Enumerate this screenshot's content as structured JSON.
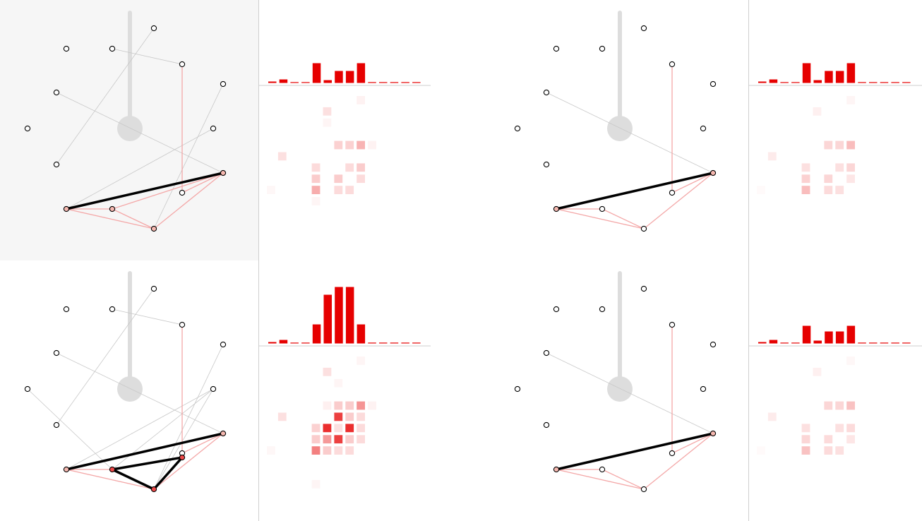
{
  "colors": {
    "accent": "#e60000",
    "pink_edge": "#f4a8a8",
    "gray_edge": "#c8c8c8",
    "panel_bg": "#f6f6f6",
    "thermo": "#dddddd",
    "divider": "#cfcfcf",
    "highlight_edge": "#000000",
    "node_selected_light": "#f6b8b0",
    "node_selected_strong": "#ee4a4a",
    "node_default": "#ffffff"
  },
  "icons": {
    "thermometer": "thermometer-icon"
  },
  "chart_data": [
    {
      "type": "bar",
      "name_hint": "top-left",
      "values": [
        2,
        5,
        1,
        1,
        28,
        4,
        17,
        17,
        28,
        1,
        1,
        1,
        1,
        1
      ],
      "ylim": [
        0,
        90
      ],
      "matrix_size": 14,
      "matrix": [
        {
          "r": 0,
          "c": 8,
          "v": 0.05
        },
        {
          "r": 1,
          "c": 5,
          "v": 0.12
        },
        {
          "r": 2,
          "c": 5,
          "v": 0.04
        },
        {
          "r": 4,
          "c": 6,
          "v": 0.18
        },
        {
          "r": 4,
          "c": 7,
          "v": 0.18
        },
        {
          "r": 4,
          "c": 8,
          "v": 0.3
        },
        {
          "r": 4,
          "c": 9,
          "v": 0.05
        },
        {
          "r": 5,
          "c": 1,
          "v": 0.12
        },
        {
          "r": 6,
          "c": 4,
          "v": 0.14
        },
        {
          "r": 6,
          "c": 7,
          "v": 0.14
        },
        {
          "r": 6,
          "c": 8,
          "v": 0.2
        },
        {
          "r": 7,
          "c": 4,
          "v": 0.2
        },
        {
          "r": 7,
          "c": 6,
          "v": 0.2
        },
        {
          "r": 7,
          "c": 8,
          "v": 0.14
        },
        {
          "r": 8,
          "c": 0,
          "v": 0.03
        },
        {
          "r": 8,
          "c": 4,
          "v": 0.32
        },
        {
          "r": 8,
          "c": 6,
          "v": 0.14
        },
        {
          "r": 8,
          "c": 7,
          "v": 0.14
        },
        {
          "r": 9,
          "c": 4,
          "v": 0.04
        }
      ],
      "edges_gray": [
        [
          2,
          8
        ],
        [
          3,
          13
        ],
        [
          1,
          9
        ],
        [
          12,
          7
        ],
        [
          11,
          6
        ]
      ],
      "edges_pink": [
        [
          11,
          4
        ],
        [
          11,
          7
        ],
        [
          4,
          7
        ],
        [
          7,
          13
        ],
        [
          4,
          13
        ],
        [
          9,
          10
        ],
        [
          10,
          13
        ]
      ],
      "edges_black": [
        [
          11,
          13
        ]
      ],
      "triangle": [],
      "selected_nodes": [
        11,
        4,
        7,
        13
      ],
      "strong_nodes": []
    },
    {
      "type": "bar",
      "name_hint": "top-right",
      "values": [
        2,
        5,
        1,
        1,
        28,
        4,
        17,
        17,
        28,
        1,
        1,
        1,
        1,
        1
      ],
      "ylim": [
        0,
        90
      ],
      "matrix_size": 14,
      "matrix": [
        {
          "r": 0,
          "c": 8,
          "v": 0.04
        },
        {
          "r": 1,
          "c": 5,
          "v": 0.06
        },
        {
          "r": 4,
          "c": 6,
          "v": 0.16
        },
        {
          "r": 4,
          "c": 7,
          "v": 0.16
        },
        {
          "r": 4,
          "c": 8,
          "v": 0.26
        },
        {
          "r": 5,
          "c": 1,
          "v": 0.08
        },
        {
          "r": 6,
          "c": 4,
          "v": 0.12
        },
        {
          "r": 6,
          "c": 7,
          "v": 0.12
        },
        {
          "r": 6,
          "c": 8,
          "v": 0.16
        },
        {
          "r": 7,
          "c": 4,
          "v": 0.18
        },
        {
          "r": 7,
          "c": 6,
          "v": 0.16
        },
        {
          "r": 7,
          "c": 8,
          "v": 0.1
        },
        {
          "r": 8,
          "c": 0,
          "v": 0.02
        },
        {
          "r": 8,
          "c": 4,
          "v": 0.26
        },
        {
          "r": 8,
          "c": 6,
          "v": 0.14
        },
        {
          "r": 8,
          "c": 7,
          "v": 0.12
        }
      ],
      "edges_gray": [
        [
          3,
          13
        ]
      ],
      "edges_pink": [
        [
          11,
          4
        ],
        [
          11,
          7
        ],
        [
          4,
          7
        ],
        [
          7,
          13
        ],
        [
          9,
          10
        ],
        [
          10,
          13
        ]
      ],
      "edges_black": [
        [
          11,
          13
        ]
      ],
      "triangle": [],
      "selected_nodes": [
        11,
        13
      ],
      "strong_nodes": []
    },
    {
      "type": "bar",
      "name_hint": "bottom-left",
      "values": [
        2,
        5,
        1,
        1,
        27,
        69,
        80,
        80,
        27,
        1,
        1,
        1,
        1,
        1
      ],
      "ylim": [
        0,
        90
      ],
      "matrix_size": 14,
      "matrix": [
        {
          "r": 0,
          "c": 8,
          "v": 0.04
        },
        {
          "r": 1,
          "c": 5,
          "v": 0.12
        },
        {
          "r": 2,
          "c": 6,
          "v": 0.04
        },
        {
          "r": 4,
          "c": 5,
          "v": 0.06
        },
        {
          "r": 4,
          "c": 6,
          "v": 0.2
        },
        {
          "r": 4,
          "c": 7,
          "v": 0.2
        },
        {
          "r": 4,
          "c": 8,
          "v": 0.42
        },
        {
          "r": 4,
          "c": 9,
          "v": 0.05
        },
        {
          "r": 5,
          "c": 1,
          "v": 0.12
        },
        {
          "r": 5,
          "c": 6,
          "v": 0.75
        },
        {
          "r": 5,
          "c": 7,
          "v": 0.2
        },
        {
          "r": 5,
          "c": 8,
          "v": 0.14
        },
        {
          "r": 6,
          "c": 4,
          "v": 0.18
        },
        {
          "r": 6,
          "c": 5,
          "v": 0.82
        },
        {
          "r": 6,
          "c": 6,
          "v": 0.12
        },
        {
          "r": 6,
          "c": 7,
          "v": 0.82
        },
        {
          "r": 6,
          "c": 8,
          "v": 0.14
        },
        {
          "r": 7,
          "c": 4,
          "v": 0.2
        },
        {
          "r": 7,
          "c": 5,
          "v": 0.4
        },
        {
          "r": 7,
          "c": 6,
          "v": 0.75
        },
        {
          "r": 7,
          "c": 7,
          "v": 0.2
        },
        {
          "r": 7,
          "c": 8,
          "v": 0.14
        },
        {
          "r": 8,
          "c": 0,
          "v": 0.03
        },
        {
          "r": 8,
          "c": 4,
          "v": 0.5
        },
        {
          "r": 8,
          "c": 5,
          "v": 0.2
        },
        {
          "r": 8,
          "c": 6,
          "v": 0.14
        },
        {
          "r": 8,
          "c": 7,
          "v": 0.14
        },
        {
          "r": 11,
          "c": 4,
          "v": 0.04
        }
      ],
      "edges_gray": [
        [
          2,
          8
        ],
        [
          3,
          13
        ],
        [
          1,
          9
        ],
        [
          12,
          7
        ],
        [
          11,
          6
        ],
        [
          4,
          6
        ],
        [
          7,
          6
        ],
        [
          4,
          5
        ]
      ],
      "edges_pink": [
        [
          11,
          4
        ],
        [
          11,
          7
        ],
        [
          7,
          13
        ],
        [
          9,
          10
        ],
        [
          10,
          13
        ]
      ],
      "edges_black": [
        [
          11,
          13
        ]
      ],
      "triangle": [
        4,
        14,
        7
      ],
      "selected_nodes": [
        11,
        13
      ],
      "strong_nodes": [
        4,
        14,
        7
      ]
    },
    {
      "type": "bar",
      "name_hint": "bottom-right",
      "values": [
        2,
        5,
        1,
        1,
        25,
        4,
        17,
        17,
        25,
        1,
        1,
        1,
        1,
        1
      ],
      "ylim": [
        0,
        90
      ],
      "matrix_size": 14,
      "matrix": [
        {
          "r": 0,
          "c": 8,
          "v": 0.03
        },
        {
          "r": 1,
          "c": 5,
          "v": 0.06
        },
        {
          "r": 4,
          "c": 6,
          "v": 0.16
        },
        {
          "r": 4,
          "c": 7,
          "v": 0.16
        },
        {
          "r": 4,
          "c": 8,
          "v": 0.24
        },
        {
          "r": 5,
          "c": 1,
          "v": 0.08
        },
        {
          "r": 6,
          "c": 4,
          "v": 0.12
        },
        {
          "r": 6,
          "c": 7,
          "v": 0.12
        },
        {
          "r": 6,
          "c": 8,
          "v": 0.14
        },
        {
          "r": 7,
          "c": 4,
          "v": 0.16
        },
        {
          "r": 7,
          "c": 6,
          "v": 0.14
        },
        {
          "r": 7,
          "c": 8,
          "v": 0.1
        },
        {
          "r": 8,
          "c": 0,
          "v": 0.02
        },
        {
          "r": 8,
          "c": 4,
          "v": 0.24
        },
        {
          "r": 8,
          "c": 6,
          "v": 0.14
        },
        {
          "r": 8,
          "c": 7,
          "v": 0.12
        }
      ],
      "edges_gray": [
        [
          3,
          13
        ]
      ],
      "edges_pink": [
        [
          11,
          4
        ],
        [
          11,
          7
        ],
        [
          4,
          7
        ],
        [
          7,
          13
        ],
        [
          9,
          10
        ],
        [
          10,
          13
        ]
      ],
      "edges_black": [
        [
          11,
          13
        ]
      ],
      "triangle": [],
      "selected_nodes": [
        11,
        13
      ],
      "strong_nodes": []
    }
  ]
}
